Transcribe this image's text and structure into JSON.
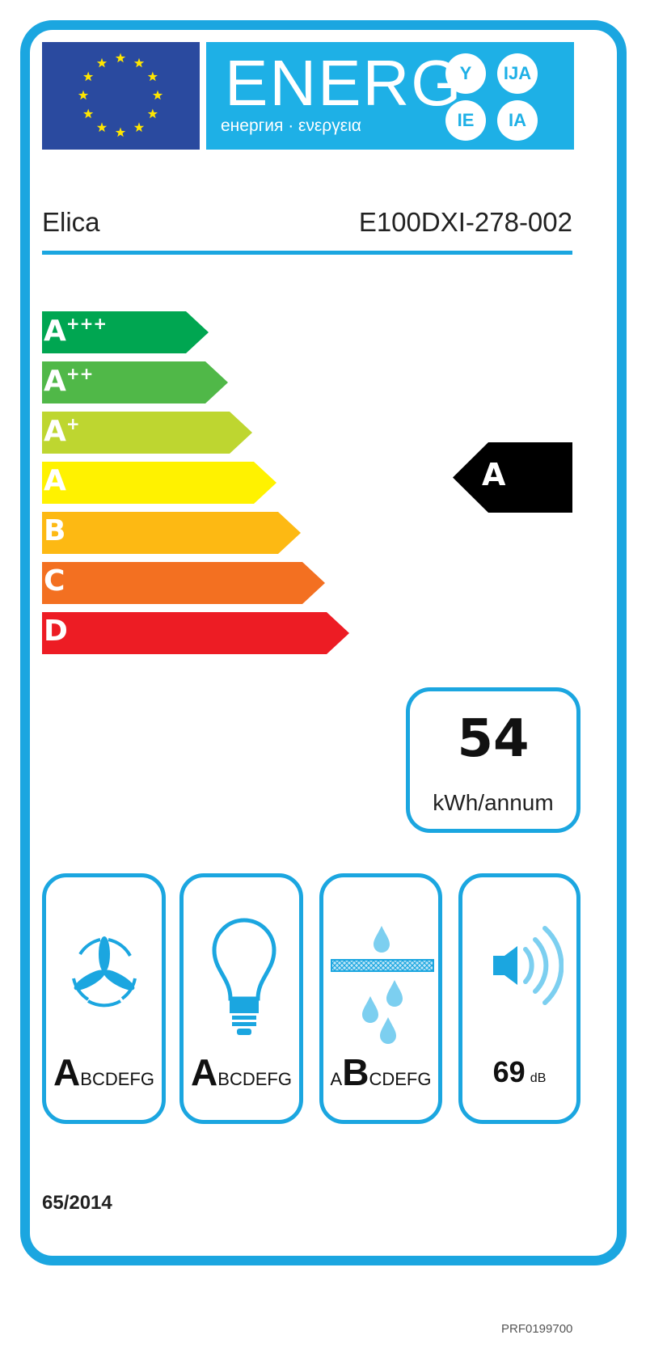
{
  "header": {
    "energy_title": "ENERG",
    "energy_subtitle": "енергия · ενεργεια",
    "language_suffixes": [
      "Y",
      "IJA",
      "IE",
      "IA"
    ],
    "flag_icon": "eu-flag-icon"
  },
  "supplier": "Elica",
  "model": "E100DXI-278-002",
  "classes": [
    {
      "label": "A",
      "plus": "+++",
      "color": "#00a651"
    },
    {
      "label": "A",
      "plus": "++",
      "color": "#50b848"
    },
    {
      "label": "A",
      "plus": "+",
      "color": "#bed630"
    },
    {
      "label": "A",
      "plus": "",
      "color": "#fff200"
    },
    {
      "label": "B",
      "plus": "",
      "color": "#fdb913"
    },
    {
      "label": "C",
      "plus": "",
      "color": "#f37021"
    },
    {
      "label": "D",
      "plus": "",
      "color": "#ed1c24"
    }
  ],
  "rating": "A",
  "consumption": {
    "value": "54",
    "unit": "kWh/annum"
  },
  "indicators": [
    {
      "icon": "fan-icon",
      "selected": "A",
      "before": "",
      "after": "BCDEFG"
    },
    {
      "icon": "light-bulb-icon",
      "selected": "A",
      "before": "",
      "after": "BCDEFG"
    },
    {
      "icon": "grease-filter-icon",
      "selected": "B",
      "before": "A",
      "after": "CDEFG"
    },
    {
      "icon": "speaker-icon",
      "value": "69",
      "unit": "dB"
    }
  ],
  "regulation": "65/2014",
  "code": "PRF0199700",
  "colors": {
    "frame": "#1ba6e0",
    "banner": "#1eb0e6",
    "flag": "#2a4a9f",
    "icon": "#1ba6e0"
  }
}
